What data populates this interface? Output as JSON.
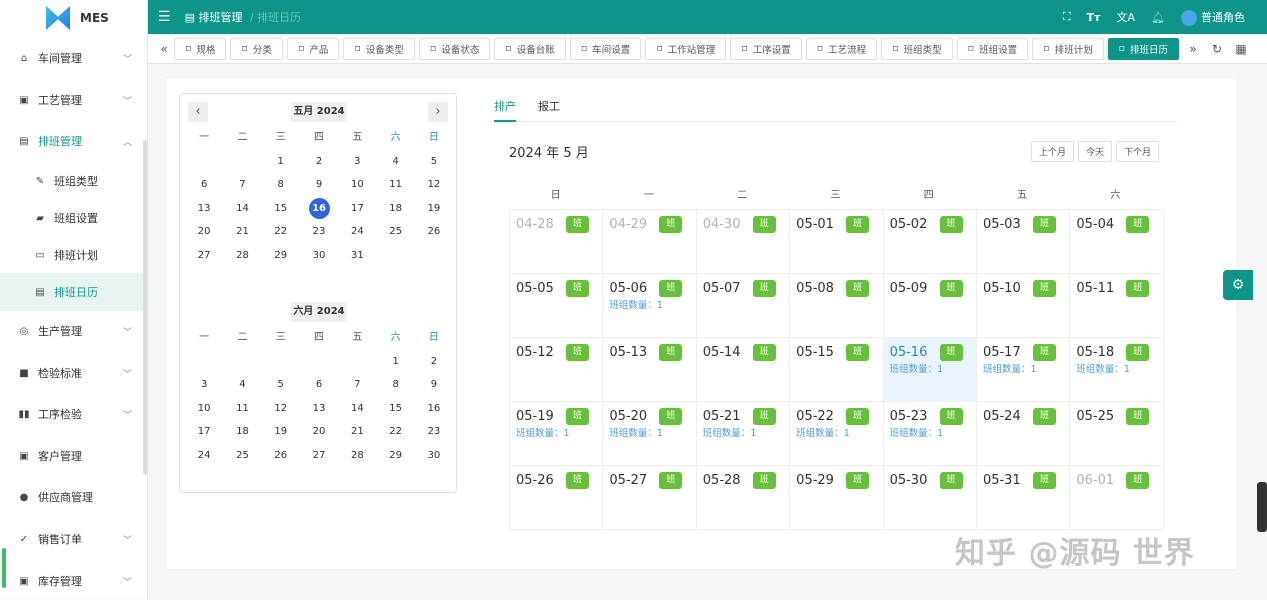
{
  "app": {
    "name": "MES"
  },
  "sidebar": {
    "items": [
      {
        "label": "车间管理",
        "icon": "workshop-icon",
        "chev": true
      },
      {
        "label": "工艺管理",
        "icon": "process-icon",
        "chev": true
      },
      {
        "label": "排班管理",
        "icon": "calendar-icon",
        "chev": true,
        "open": true
      },
      {
        "label": "班组类型",
        "icon": "pen-icon",
        "sub": true
      },
      {
        "label": "班组设置",
        "icon": "book-icon",
        "sub": true
      },
      {
        "label": "排班计划",
        "icon": "message-icon",
        "sub": true
      },
      {
        "label": "排班日历",
        "icon": "calendar-icon",
        "sub": true,
        "active": true
      },
      {
        "label": "生产管理",
        "icon": "database-icon",
        "chev": true
      },
      {
        "label": "检验标准",
        "icon": "monitor-icon",
        "chev": true
      },
      {
        "label": "工序检验",
        "icon": "open-book-icon",
        "chev": true
      },
      {
        "label": "客户管理",
        "icon": "contact-icon"
      },
      {
        "label": "供应商管理",
        "icon": "user-icon"
      },
      {
        "label": "销售订单",
        "icon": "list-check-icon",
        "chev": true
      },
      {
        "label": "库存管理",
        "icon": "box-icon",
        "chev": true
      }
    ]
  },
  "header": {
    "breadcrumb": [
      "排班管理",
      "排班日历"
    ],
    "user": "普通角色",
    "icons": [
      "fullscreen-icon",
      "font-size-icon",
      "translate-icon",
      "bell-icon"
    ]
  },
  "tags": [
    "规格",
    "分类",
    "产品",
    "设备类型",
    "设备状态",
    "设备台账",
    "车间设置",
    "工作站管理",
    "工序设置",
    "工艺流程",
    "班组类型",
    "班组设置",
    "排班计划",
    "排班日历"
  ],
  "active_tag": "排班日历",
  "mini_calendar": {
    "weekdays": [
      "一",
      "二",
      "三",
      "四",
      "五",
      "六",
      "日"
    ],
    "months": [
      {
        "title": "五月 2024",
        "offset": 2,
        "days": 31,
        "selected": 16
      },
      {
        "title": "六月 2024",
        "offset": 5,
        "days": 30
      }
    ]
  },
  "main": {
    "tabs": [
      "排产",
      "报工"
    ],
    "active_tab": "排产",
    "title": "2024 年 5 月",
    "buttons": [
      "上个月",
      "今天",
      "下个月"
    ],
    "weekdays": [
      "日",
      "一",
      "二",
      "三",
      "四",
      "五",
      "六"
    ],
    "badge": "班",
    "count_label": "班组数量：",
    "cells": [
      {
        "d": "04-28",
        "other": true
      },
      {
        "d": "04-29",
        "other": true
      },
      {
        "d": "04-30",
        "other": true
      },
      {
        "d": "05-01"
      },
      {
        "d": "05-02"
      },
      {
        "d": "05-03"
      },
      {
        "d": "05-04"
      },
      {
        "d": "05-05"
      },
      {
        "d": "05-06",
        "count": 1
      },
      {
        "d": "05-07"
      },
      {
        "d": "05-08"
      },
      {
        "d": "05-09"
      },
      {
        "d": "05-10"
      },
      {
        "d": "05-11"
      },
      {
        "d": "05-12"
      },
      {
        "d": "05-13"
      },
      {
        "d": "05-14"
      },
      {
        "d": "05-15"
      },
      {
        "d": "05-16",
        "count": 1,
        "today": true
      },
      {
        "d": "05-17",
        "count": 1
      },
      {
        "d": "05-18",
        "count": 1
      },
      {
        "d": "05-19",
        "count": 1
      },
      {
        "d": "05-20",
        "count": 1
      },
      {
        "d": "05-21",
        "count": 1
      },
      {
        "d": "05-22",
        "count": 1
      },
      {
        "d": "05-23",
        "count": 1
      },
      {
        "d": "05-24"
      },
      {
        "d": "05-25"
      },
      {
        "d": "05-26"
      },
      {
        "d": "05-27"
      },
      {
        "d": "05-28"
      },
      {
        "d": "05-29"
      },
      {
        "d": "05-30"
      },
      {
        "d": "05-31"
      },
      {
        "d": "06-01",
        "other": true
      }
    ]
  },
  "watermark": "知乎 @源码 世界",
  "colors": {
    "primary": "#0d9688",
    "badge": "#67c23a",
    "selected": "#2b67e0"
  }
}
